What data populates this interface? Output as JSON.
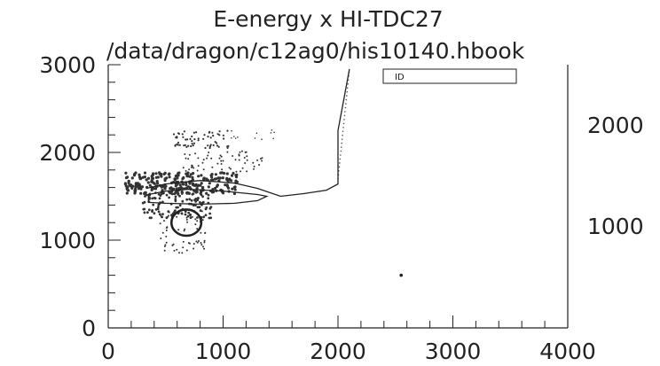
{
  "chart_data": {
    "type": "scatter",
    "title": "E-energy x HI-TDC27",
    "subtitle": "/data/dragon/c12ag0/his10140.hbook",
    "xlim": [
      0,
      4000
    ],
    "ylim": [
      0,
      3000
    ],
    "x_ticks": [
      0,
      1000,
      2000,
      3000,
      4000
    ],
    "y_ticks": [
      0,
      1000,
      2000,
      3000
    ],
    "right_ticks": [
      "2000",
      "1000"
    ],
    "stats_box_label": "ID",
    "contour_outer": [
      [
        330,
        1590
      ],
      [
        500,
        1640
      ],
      [
        800,
        1680
      ],
      [
        1100,
        1650
      ],
      [
        1300,
        1590
      ],
      [
        1500,
        1500
      ],
      [
        1700,
        1530
      ],
      [
        1900,
        1570
      ],
      [
        2000,
        1640
      ],
      [
        2000,
        2250
      ],
      [
        2050,
        2600
      ],
      [
        2100,
        2950
      ]
    ],
    "contour_lower": [
      [
        350,
        1430
      ],
      [
        500,
        1420
      ],
      [
        800,
        1410
      ],
      [
        1100,
        1420
      ],
      [
        1300,
        1450
      ],
      [
        1380,
        1500
      ],
      [
        1300,
        1520
      ],
      [
        1000,
        1560
      ],
      [
        700,
        1580
      ],
      [
        500,
        1560
      ],
      [
        350,
        1520
      ]
    ],
    "loop": {
      "center": [
        680,
        1200
      ],
      "radius": [
        130,
        150
      ]
    },
    "single_point": [
      2550,
      600
    ],
    "grid": false
  }
}
